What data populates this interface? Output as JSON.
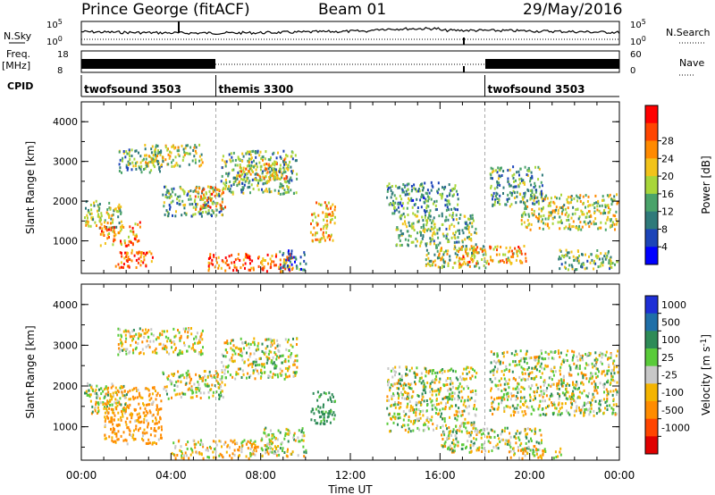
{
  "header": {
    "station": "Prince George (fitACF)",
    "beam": "Beam 01",
    "date": "29/May/2016"
  },
  "strip_labels": {
    "nsky": "N.Sky",
    "nsearch": "N.Search",
    "freq_line1": "Freq.",
    "freq_line2": "[MHz]",
    "nave": "Nave",
    "cpid": "CPID",
    "nsky_ticks": [
      "10^5",
      "10^0"
    ],
    "nsearch_ticks": [
      "10^5",
      "10^0"
    ],
    "freq_ticks": [
      "18",
      "8"
    ],
    "nave_ticks": [
      "60",
      "0"
    ]
  },
  "cpid_segments": [
    {
      "label": "twofsound 3503",
      "start_h": 0,
      "end_h": 6
    },
    {
      "label": "themis 3300",
      "start_h": 6,
      "end_h": 18
    },
    {
      "label": "twofsound 3503",
      "start_h": 18,
      "end_h": 24
    }
  ],
  "colors": {
    "power_scale": [
      "#0000ff",
      "#1c44b8",
      "#2f7a7a",
      "#4aa36a",
      "#a8d63a",
      "#f2c31a",
      "#ff8a00",
      "#ff4500",
      "#ff0000"
    ],
    "velocity_scale": [
      "#1e2fd6",
      "#1f6fa8",
      "#2e8b57",
      "#5acb3a",
      "#c8c8c8",
      "#f4b400",
      "#ff8c00",
      "#ff4500",
      "#e00000"
    ]
  },
  "chart_data": [
    {
      "type": "heatmap",
      "title": "",
      "xlabel": "Time UT",
      "ylabel": "Slant Range [km]",
      "xlim": [
        0,
        24
      ],
      "ylim": [
        180,
        4500
      ],
      "x_ticks": [
        "00:00",
        "04:00",
        "08:00",
        "12:00",
        "16:00",
        "20:00",
        "00:00"
      ],
      "y_ticks": [
        "1000",
        "2000",
        "3000",
        "4000"
      ],
      "colorbar": {
        "label": "Power [dB]",
        "ticks": [
          "4",
          "8",
          "12",
          "16",
          "20",
          "24",
          "28"
        ],
        "range": [
          0,
          30
        ]
      },
      "scatter_regions": [
        {
          "t0": 0.1,
          "t1": 1.8,
          "r0": 1350,
          "r1": 2050,
          "v": 14
        },
        {
          "t0": 0.8,
          "t1": 2.6,
          "r0": 900,
          "r1": 1500,
          "v": 21
        },
        {
          "t0": 1.5,
          "t1": 3.2,
          "r0": 350,
          "r1": 800,
          "v": 24
        },
        {
          "t0": 1.6,
          "t1": 3.6,
          "r0": 2750,
          "r1": 3350,
          "v": 12
        },
        {
          "t0": 2.8,
          "t1": 5.4,
          "r0": 2900,
          "r1": 3450,
          "v": 15
        },
        {
          "t0": 3.6,
          "t1": 6.3,
          "r0": 1650,
          "r1": 2400,
          "v": 11
        },
        {
          "t0": 5.0,
          "t1": 6.4,
          "r0": 1800,
          "r1": 2400,
          "v": 20
        },
        {
          "t0": 5.6,
          "t1": 9.4,
          "r0": 250,
          "r1": 700,
          "v": 24
        },
        {
          "t0": 6.2,
          "t1": 9.6,
          "r0": 2200,
          "r1": 3300,
          "v": 12
        },
        {
          "t0": 7.0,
          "t1": 9.2,
          "r0": 2500,
          "r1": 3100,
          "v": 18
        },
        {
          "t0": 8.8,
          "t1": 10.0,
          "r0": 300,
          "r1": 800,
          "v": 7
        },
        {
          "t0": 10.2,
          "t1": 11.3,
          "r0": 1000,
          "r1": 2000,
          "v": 20
        },
        {
          "t0": 13.6,
          "t1": 16.8,
          "r0": 1700,
          "r1": 2500,
          "v": 10
        },
        {
          "t0": 14.0,
          "t1": 17.6,
          "r0": 900,
          "r1": 1700,
          "v": 13
        },
        {
          "t0": 15.2,
          "t1": 18.0,
          "r0": 350,
          "r1": 900,
          "v": 15
        },
        {
          "t0": 16.8,
          "t1": 19.8,
          "r0": 450,
          "r1": 900,
          "v": 20
        },
        {
          "t0": 18.2,
          "t1": 20.6,
          "r0": 1900,
          "r1": 2900,
          "v": 11
        },
        {
          "t0": 19.6,
          "t1": 23.9,
          "r0": 1300,
          "r1": 2200,
          "v": 16
        },
        {
          "t0": 21.2,
          "t1": 23.9,
          "r0": 300,
          "r1": 800,
          "v": 13
        }
      ]
    },
    {
      "type": "heatmap",
      "title": "",
      "xlabel": "Time UT",
      "ylabel": "Slant Range [km]",
      "xlim": [
        0,
        24
      ],
      "ylim": [
        180,
        4500
      ],
      "x_ticks": [
        "00:00",
        "04:00",
        "08:00",
        "12:00",
        "16:00",
        "20:00",
        "00:00"
      ],
      "y_ticks": [
        "1000",
        "2000",
        "3000",
        "4000"
      ],
      "colorbar": {
        "label": "Velocity [m s^-1]",
        "ticks": [
          "1000",
          "500",
          "100",
          "25",
          "-25",
          "-100",
          "-500",
          "-1000"
        ]
      },
      "scatter_regions": [
        {
          "t0": 0.1,
          "t1": 2.0,
          "r0": 1350,
          "r1": 2100,
          "v": 0
        },
        {
          "t0": 1.0,
          "t1": 3.6,
          "r0": 600,
          "r1": 2000,
          "v": -150
        },
        {
          "t0": 1.6,
          "t1": 5.4,
          "r0": 2800,
          "r1": 3450,
          "v": -40
        },
        {
          "t0": 3.6,
          "t1": 6.4,
          "r0": 1700,
          "r1": 2400,
          "v": 0
        },
        {
          "t0": 4.0,
          "t1": 8.4,
          "r0": 250,
          "r1": 700,
          "v": -60
        },
        {
          "t0": 6.2,
          "t1": 9.6,
          "r0": 2200,
          "r1": 3200,
          "v": 0
        },
        {
          "t0": 8.0,
          "t1": 10.0,
          "r0": 300,
          "r1": 1000,
          "v": 0
        },
        {
          "t0": 10.2,
          "t1": 11.3,
          "r0": 1100,
          "r1": 1900,
          "v": 200
        },
        {
          "t0": 13.6,
          "t1": 17.6,
          "r0": 900,
          "r1": 2500,
          "v": 0
        },
        {
          "t0": 16.0,
          "t1": 20.5,
          "r0": 400,
          "r1": 1000,
          "v": 0
        },
        {
          "t0": 18.2,
          "t1": 23.9,
          "r0": 1300,
          "r1": 2900,
          "v": 0
        },
        {
          "t0": 19.0,
          "t1": 21.5,
          "r0": 250,
          "r1": 500,
          "v": -60
        }
      ]
    }
  ]
}
